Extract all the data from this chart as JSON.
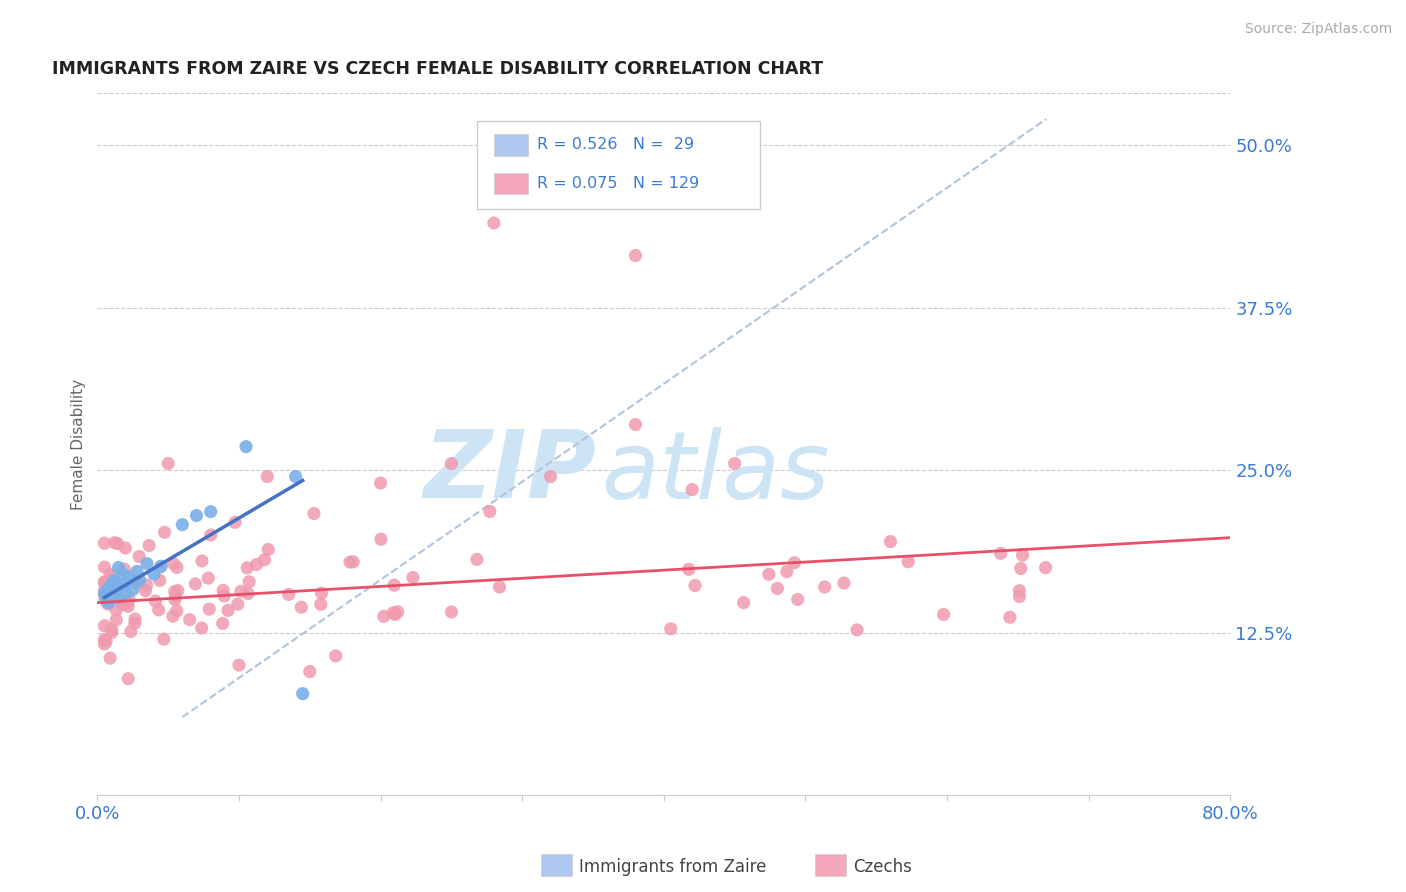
{
  "title": "IMMIGRANTS FROM ZAIRE VS CZECH FEMALE DISABILITY CORRELATION CHART",
  "source_text": "Source: ZipAtlas.com",
  "ylabel": "Female Disability",
  "xlim": [
    0.0,
    0.8
  ],
  "ylim": [
    0.0,
    0.54
  ],
  "xticks": [
    0.0,
    0.8
  ],
  "xticklabels": [
    "0.0%",
    "80.0%"
  ],
  "yticks": [
    0.125,
    0.25,
    0.375,
    0.5
  ],
  "yticklabels": [
    "12.5%",
    "25.0%",
    "37.5%",
    "50.0%"
  ],
  "zaire_color": "#7ab0e8",
  "czech_color": "#f09aae",
  "zaire_line_color": "#4472c4",
  "czech_line_color": "#e8506a",
  "dashed_line_color": "#b0c4de",
  "background_color": "#ffffff",
  "grid_color": "#cccccc",
  "watermark_zip_color": "#cde4f5",
  "watermark_atlas_color": "#cde4f5",
  "title_color": "#222222",
  "source_color": "#aaaaaa",
  "ytick_color": "#3a7bd5",
  "xtick_color": "#3a7bd5",
  "ylabel_color": "#666666",
  "legend_bg": "#ffffff",
  "legend_border": "#cccccc",
  "legend_text_color": "#3a7bd5",
  "legend_blue_color": "#aec6f0",
  "legend_pink_color": "#f5a8bb",
  "footer_blue_color": "#aec6f0",
  "footer_pink_color": "#f5a8bb",
  "footer_label_color": "#444444",
  "R_zaire": 0.526,
  "N_zaire": 29,
  "R_czech": 0.075,
  "N_czech": 129
}
